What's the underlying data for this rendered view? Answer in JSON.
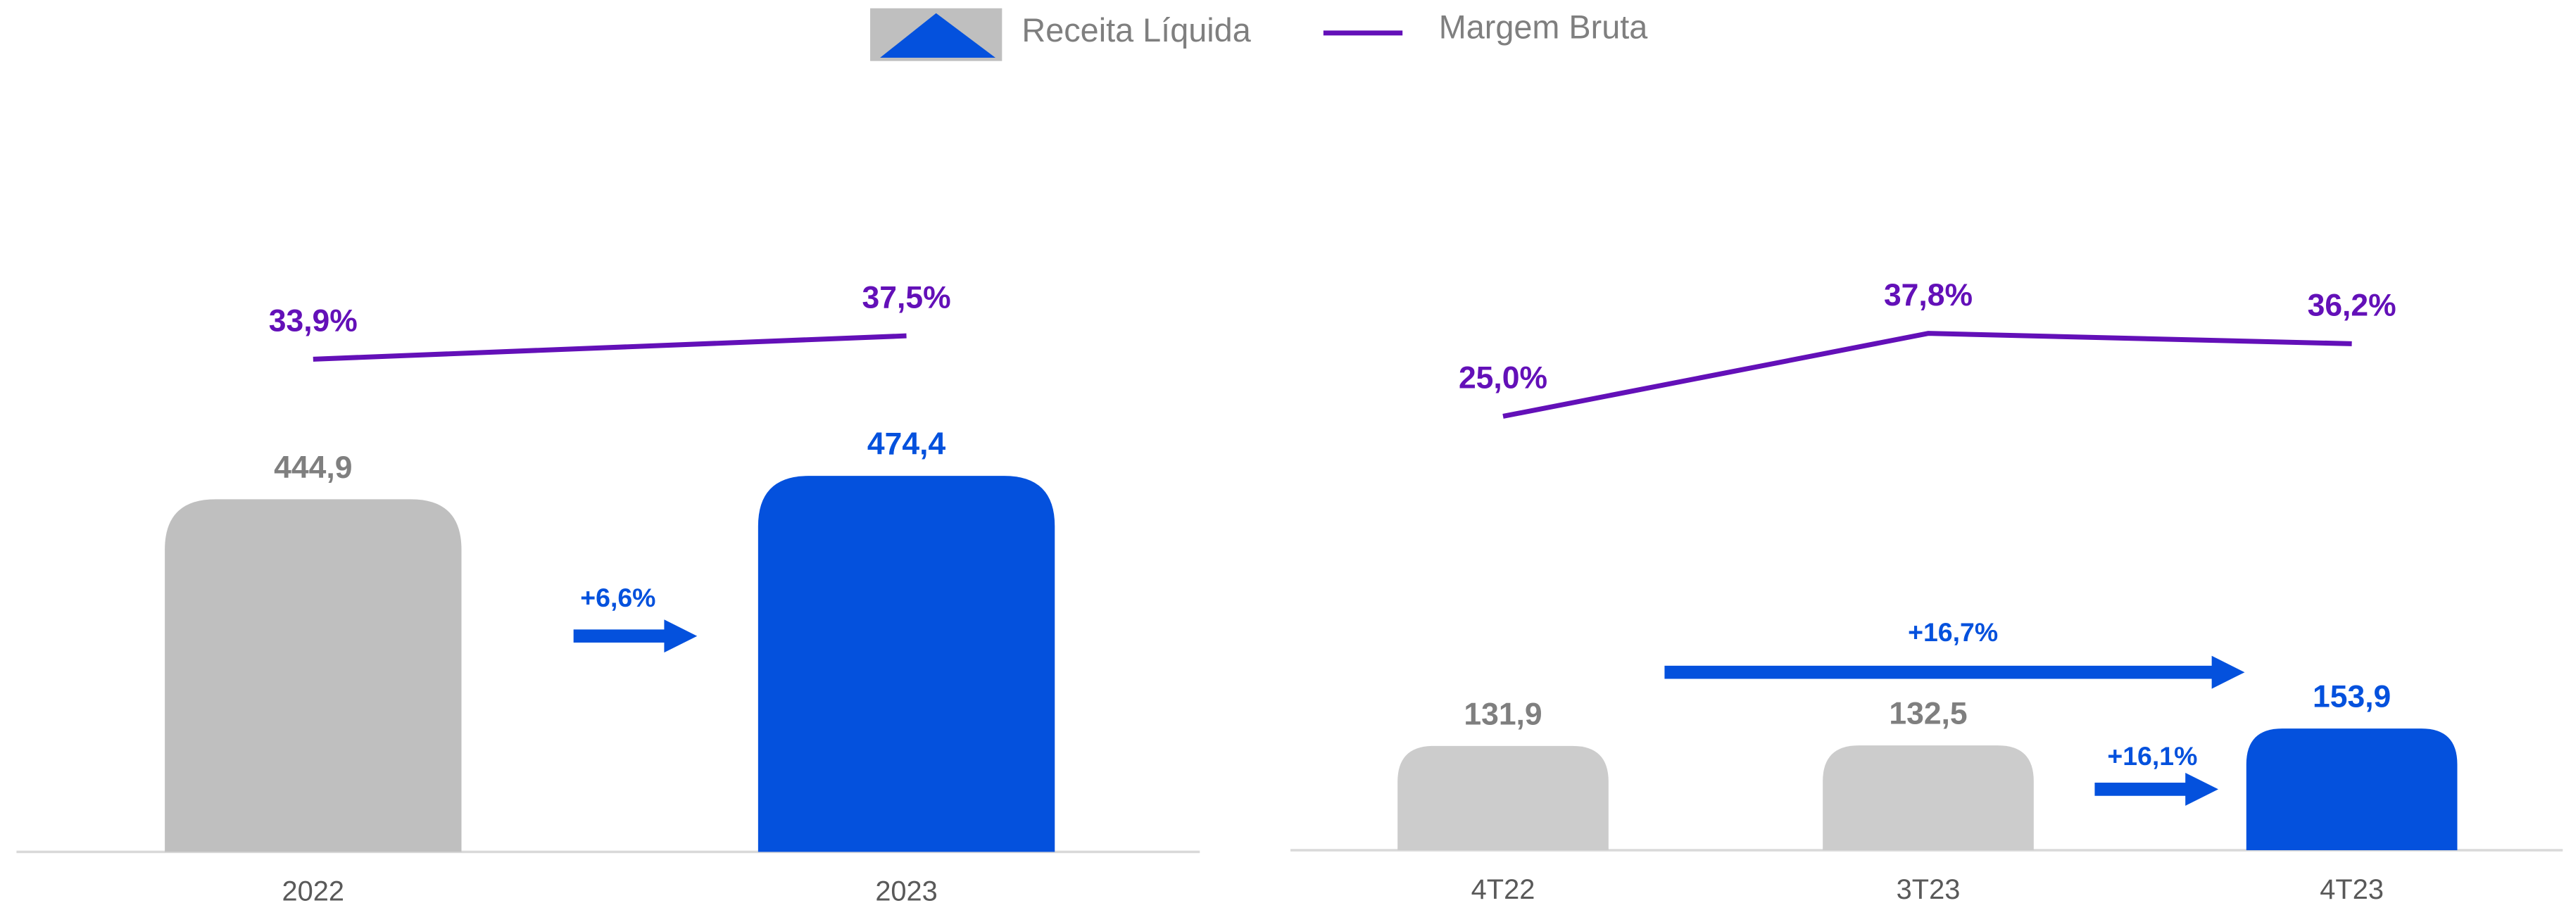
{
  "chart_data": [
    {
      "type": "bar",
      "categories": [
        "2022",
        "2023"
      ],
      "ylim": [
        0,
        950
      ],
      "y2lim": [
        -42,
        74
      ],
      "series": [
        {
          "name": "Receita Líquida",
          "type": "bar",
          "colors": [
            "#bfbfbf",
            "#0451dd"
          ],
          "label_colors": [
            "#7f7f7f",
            "#0451dd"
          ],
          "values": [
            444.9,
            474.4
          ],
          "value_labels": [
            "444,9",
            "474,4"
          ]
        },
        {
          "name": "Margem Bruta",
          "type": "line",
          "axis": "y2",
          "color": "#6310b8",
          "values": [
            33.9,
            37.5
          ],
          "value_labels": [
            "33,9%",
            "37,5%"
          ]
        }
      ],
      "annotations": [
        "+6,6%"
      ]
    },
    {
      "type": "bar",
      "categories": [
        "4T22",
        "3T23",
        "4T23"
      ],
      "ylim": [
        0,
        950
      ],
      "y2lim": [
        -42,
        74
      ],
      "series": [
        {
          "type": "bar",
          "colors": [
            "#cccccc",
            "#cccccc",
            "#0451dd"
          ],
          "label_colors": [
            "#7f7f7f",
            "#7f7f7f",
            "#0451dd"
          ],
          "values": [
            131.9,
            132.5,
            153.9
          ],
          "value_labels": [
            "131,9",
            "132,5",
            "153,9"
          ]
        },
        {
          "type": "line",
          "axis": "y2",
          "color": "#6310b8",
          "values": [
            25.0,
            37.8,
            36.2
          ],
          "value_labels": [
            "25,0%",
            "37,8%",
            "36,2%"
          ]
        }
      ],
      "annotations": [
        "+16,7%",
        "+16,1%"
      ]
    }
  ]
}
